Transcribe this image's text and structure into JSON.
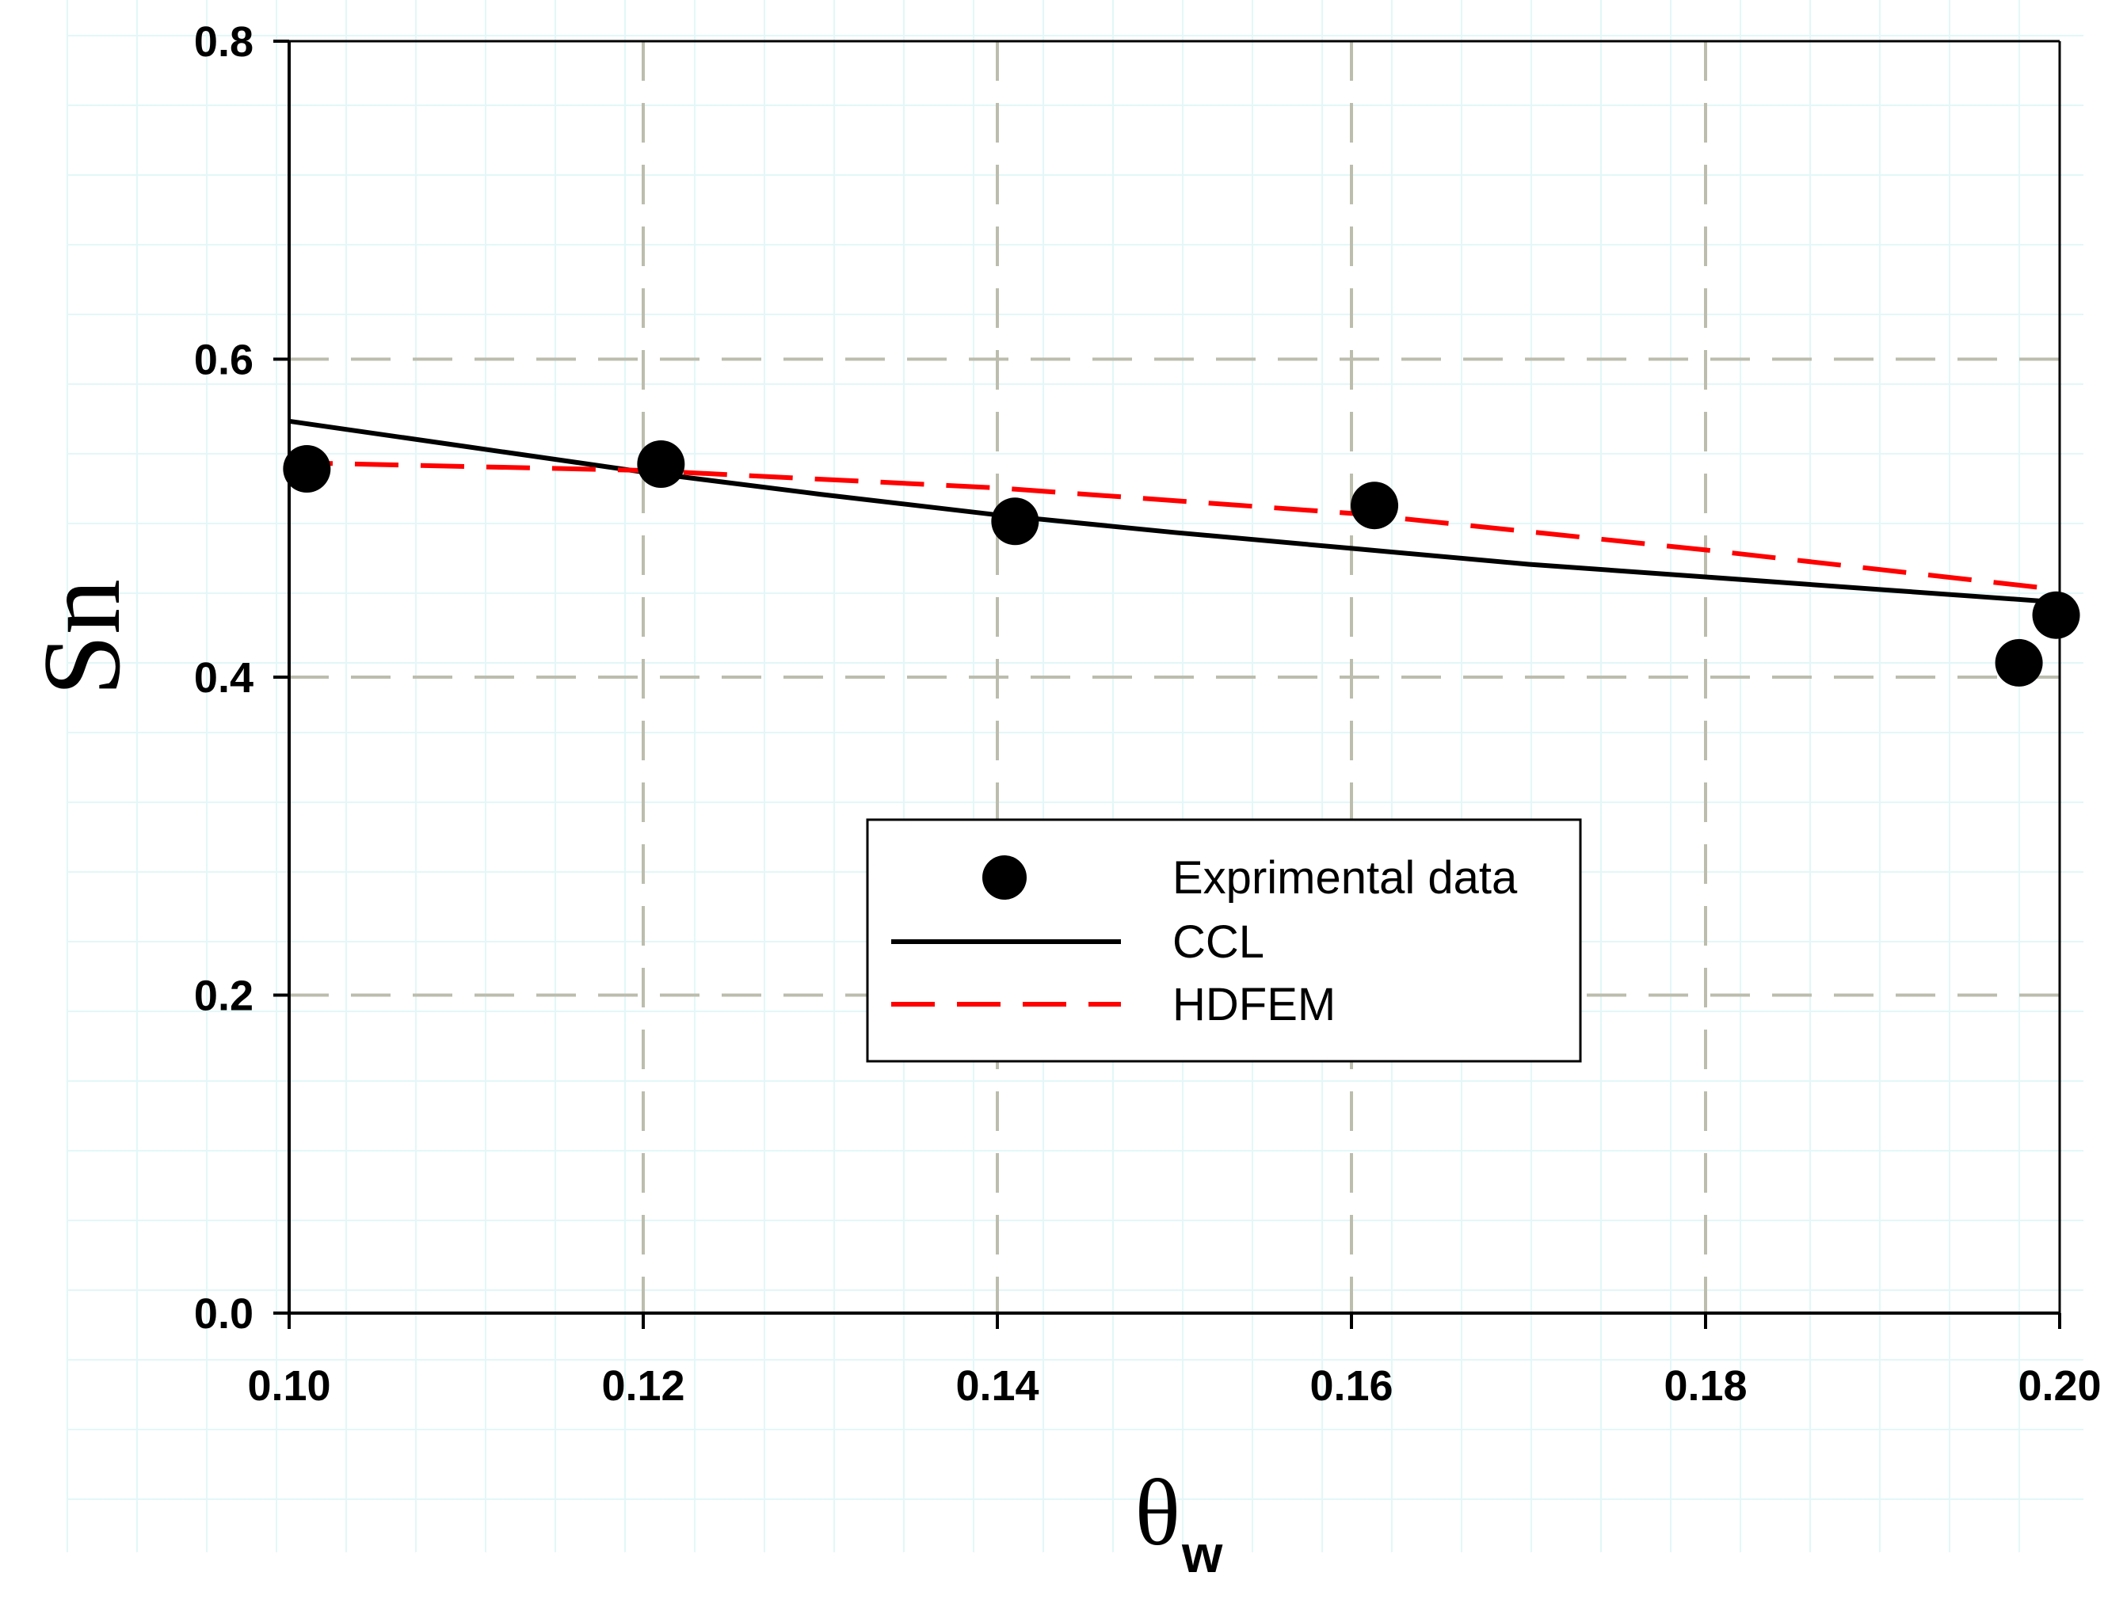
{
  "chart_data": {
    "type": "line",
    "xlabel": "θ",
    "xlabel_sub": "w",
    "ylabel": "Sn",
    "xlim": [
      0.1,
      0.2
    ],
    "ylim": [
      0.0,
      0.8
    ],
    "x_ticks": [
      "0.10",
      "0.12",
      "0.14",
      "0.16",
      "0.18",
      "0.20"
    ],
    "y_ticks": [
      "0.0",
      "0.2",
      "0.4",
      "0.6",
      "0.8"
    ],
    "grid": true,
    "legend_position": "center",
    "series": [
      {
        "name": "Exprimental data",
        "kind": "scatter",
        "color": "#000000",
        "x": [
          0.101,
          0.121,
          0.141,
          0.1613,
          0.1977,
          0.1998
        ],
        "y": [
          0.531,
          0.534,
          0.498,
          0.508,
          0.409,
          0.439
        ]
      },
      {
        "name": "CCL",
        "kind": "line",
        "color": "#000000",
        "style": "solid",
        "x": [
          0.1,
          0.11,
          0.12,
          0.13,
          0.14,
          0.15,
          0.16,
          0.17,
          0.18,
          0.19,
          0.2
        ],
        "y": [
          0.561,
          0.545,
          0.529,
          0.515,
          0.502,
          0.491,
          0.481,
          0.471,
          0.463,
          0.455,
          0.447
        ]
      },
      {
        "name": "HDFEM",
        "kind": "line",
        "color": "#ff0000",
        "style": "dashed",
        "x": [
          0.1,
          0.12,
          0.14,
          0.16,
          0.18,
          0.2
        ],
        "y": [
          0.535,
          0.53,
          0.519,
          0.503,
          0.48,
          0.455
        ]
      }
    ]
  }
}
